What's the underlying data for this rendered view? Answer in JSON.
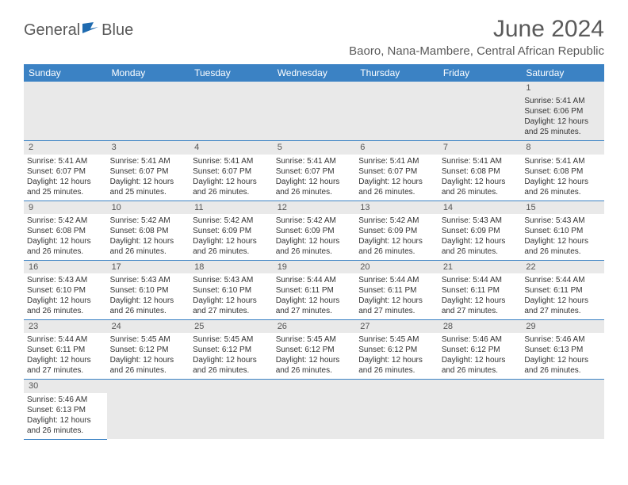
{
  "brand": {
    "name_part1": "General",
    "name_part2": "Blue"
  },
  "title": "June 2024",
  "location": "Baoro, Nana-Mambere, Central African Republic",
  "colors": {
    "header_bg": "#3b82c4",
    "header_text": "#ffffff",
    "shade_bg": "#e9e9e9",
    "text": "#333333",
    "title_text": "#5a5a5a",
    "row_border": "#3b82c4"
  },
  "day_headers": [
    "Sunday",
    "Monday",
    "Tuesday",
    "Wednesday",
    "Thursday",
    "Friday",
    "Saturday"
  ],
  "weeks": [
    [
      null,
      null,
      null,
      null,
      null,
      null,
      {
        "n": 1,
        "sr": "5:41 AM",
        "ss": "6:06 PM",
        "dl": "12 hours and 25 minutes."
      }
    ],
    [
      {
        "n": 2,
        "sr": "5:41 AM",
        "ss": "6:07 PM",
        "dl": "12 hours and 25 minutes."
      },
      {
        "n": 3,
        "sr": "5:41 AM",
        "ss": "6:07 PM",
        "dl": "12 hours and 25 minutes."
      },
      {
        "n": 4,
        "sr": "5:41 AM",
        "ss": "6:07 PM",
        "dl": "12 hours and 26 minutes."
      },
      {
        "n": 5,
        "sr": "5:41 AM",
        "ss": "6:07 PM",
        "dl": "12 hours and 26 minutes."
      },
      {
        "n": 6,
        "sr": "5:41 AM",
        "ss": "6:07 PM",
        "dl": "12 hours and 26 minutes."
      },
      {
        "n": 7,
        "sr": "5:41 AM",
        "ss": "6:08 PM",
        "dl": "12 hours and 26 minutes."
      },
      {
        "n": 8,
        "sr": "5:41 AM",
        "ss": "6:08 PM",
        "dl": "12 hours and 26 minutes."
      }
    ],
    [
      {
        "n": 9,
        "sr": "5:42 AM",
        "ss": "6:08 PM",
        "dl": "12 hours and 26 minutes."
      },
      {
        "n": 10,
        "sr": "5:42 AM",
        "ss": "6:08 PM",
        "dl": "12 hours and 26 minutes."
      },
      {
        "n": 11,
        "sr": "5:42 AM",
        "ss": "6:09 PM",
        "dl": "12 hours and 26 minutes."
      },
      {
        "n": 12,
        "sr": "5:42 AM",
        "ss": "6:09 PM",
        "dl": "12 hours and 26 minutes."
      },
      {
        "n": 13,
        "sr": "5:42 AM",
        "ss": "6:09 PM",
        "dl": "12 hours and 26 minutes."
      },
      {
        "n": 14,
        "sr": "5:43 AM",
        "ss": "6:09 PM",
        "dl": "12 hours and 26 minutes."
      },
      {
        "n": 15,
        "sr": "5:43 AM",
        "ss": "6:10 PM",
        "dl": "12 hours and 26 minutes."
      }
    ],
    [
      {
        "n": 16,
        "sr": "5:43 AM",
        "ss": "6:10 PM",
        "dl": "12 hours and 26 minutes."
      },
      {
        "n": 17,
        "sr": "5:43 AM",
        "ss": "6:10 PM",
        "dl": "12 hours and 26 minutes."
      },
      {
        "n": 18,
        "sr": "5:43 AM",
        "ss": "6:10 PM",
        "dl": "12 hours and 27 minutes."
      },
      {
        "n": 19,
        "sr": "5:44 AM",
        "ss": "6:11 PM",
        "dl": "12 hours and 27 minutes."
      },
      {
        "n": 20,
        "sr": "5:44 AM",
        "ss": "6:11 PM",
        "dl": "12 hours and 27 minutes."
      },
      {
        "n": 21,
        "sr": "5:44 AM",
        "ss": "6:11 PM",
        "dl": "12 hours and 27 minutes."
      },
      {
        "n": 22,
        "sr": "5:44 AM",
        "ss": "6:11 PM",
        "dl": "12 hours and 27 minutes."
      }
    ],
    [
      {
        "n": 23,
        "sr": "5:44 AM",
        "ss": "6:11 PM",
        "dl": "12 hours and 27 minutes."
      },
      {
        "n": 24,
        "sr": "5:45 AM",
        "ss": "6:12 PM",
        "dl": "12 hours and 26 minutes."
      },
      {
        "n": 25,
        "sr": "5:45 AM",
        "ss": "6:12 PM",
        "dl": "12 hours and 26 minutes."
      },
      {
        "n": 26,
        "sr": "5:45 AM",
        "ss": "6:12 PM",
        "dl": "12 hours and 26 minutes."
      },
      {
        "n": 27,
        "sr": "5:45 AM",
        "ss": "6:12 PM",
        "dl": "12 hours and 26 minutes."
      },
      {
        "n": 28,
        "sr": "5:46 AM",
        "ss": "6:12 PM",
        "dl": "12 hours and 26 minutes."
      },
      {
        "n": 29,
        "sr": "5:46 AM",
        "ss": "6:13 PM",
        "dl": "12 hours and 26 minutes."
      }
    ],
    [
      {
        "n": 30,
        "sr": "5:46 AM",
        "ss": "6:13 PM",
        "dl": "12 hours and 26 minutes."
      },
      null,
      null,
      null,
      null,
      null,
      null
    ]
  ],
  "labels": {
    "sunrise": "Sunrise:",
    "sunset": "Sunset:",
    "daylight": "Daylight:"
  }
}
